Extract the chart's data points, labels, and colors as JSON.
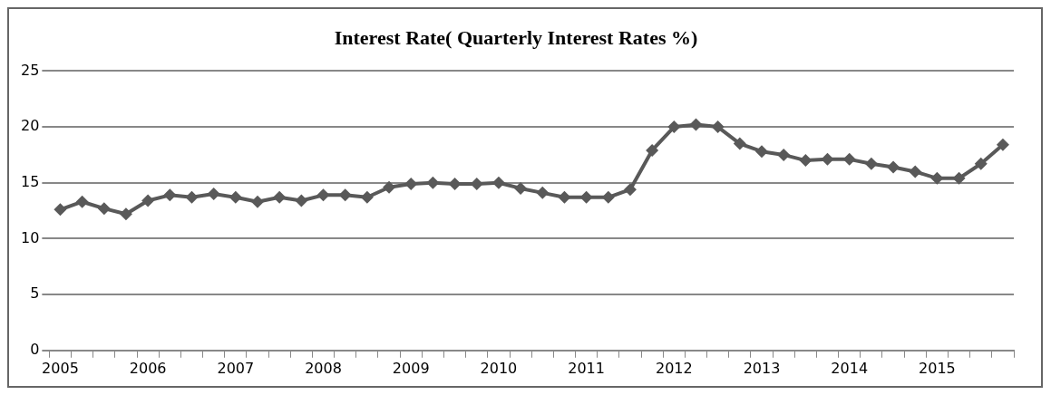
{
  "chart_data": {
    "type": "line",
    "title": "Interest Rate( Quarterly Interest Rates %)",
    "categories": [
      "2005",
      null,
      null,
      null,
      "2006",
      null,
      null,
      null,
      "2007",
      null,
      null,
      null,
      "2008",
      null,
      null,
      null,
      "2009",
      null,
      null,
      null,
      "2010",
      null,
      null,
      null,
      "2011",
      null,
      null,
      null,
      "2012",
      null,
      null,
      null,
      "2013",
      null,
      null,
      null,
      "2014",
      null,
      null,
      null,
      "2015",
      null,
      null,
      null
    ],
    "series": [
      {
        "color": "#595959",
        "values": [
          12.6,
          13.3,
          12.7,
          12.2,
          13.4,
          13.9,
          13.7,
          14.0,
          13.7,
          13.3,
          13.7,
          13.4,
          13.9,
          13.9,
          13.7,
          14.6,
          14.9,
          15.0,
          14.9,
          14.9,
          15.0,
          14.5,
          14.1,
          13.7,
          13.7,
          13.7,
          14.4,
          17.9,
          20.0,
          20.2,
          20.0,
          18.5,
          17.8,
          17.5,
          17.0,
          17.1,
          17.1,
          16.7,
          16.4,
          16.0,
          15.4,
          15.4,
          16.7,
          18.4
        ]
      }
    ],
    "ylim": [
      0,
      25
    ],
    "yticks": [
      0,
      5,
      10,
      15,
      20,
      25
    ],
    "grid": "y",
    "legend": false,
    "marker": "diamond",
    "line_style": "solid"
  }
}
